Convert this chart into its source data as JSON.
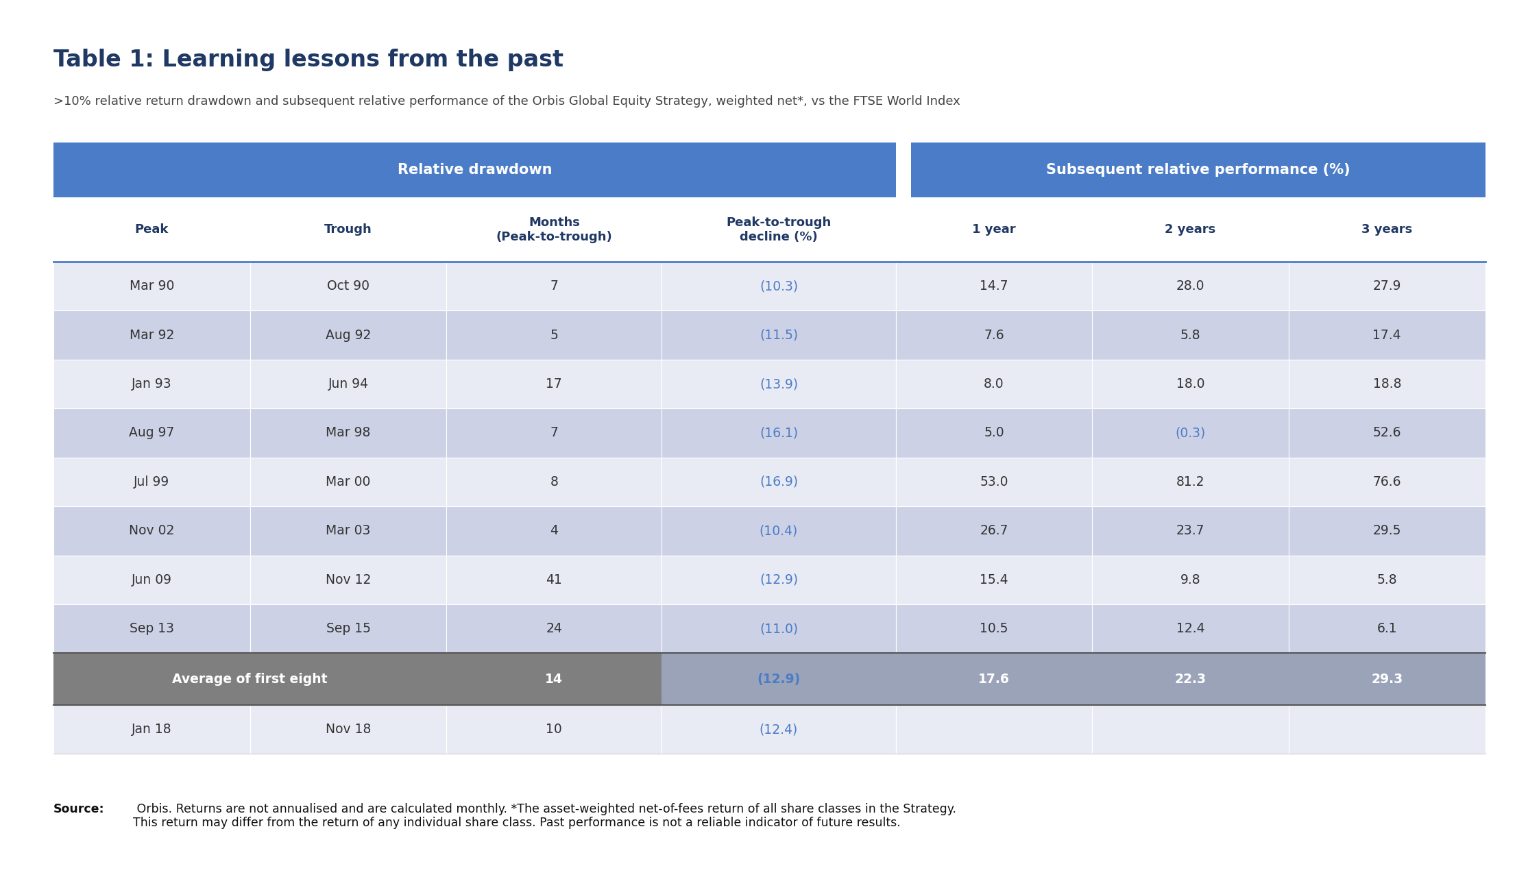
{
  "title": "Table 1: Learning lessons from the past",
  "subtitle": ">10% relative return drawdown and subsequent relative performance of the Orbis Global Equity Strategy, weighted net*, vs the FTSE World Index",
  "header1_text": "Relative drawdown",
  "header2_text": "Subsequent relative performance (%)",
  "col_headers": [
    "Peak",
    "Trough",
    "Months\n(Peak-to-trough)",
    "Peak-to-trough\ndecline (%)",
    "1 year",
    "2 years",
    "3 years"
  ],
  "rows": [
    [
      "Mar 90",
      "Oct 90",
      "7",
      "(10.3)",
      "14.7",
      "28.0",
      "27.9"
    ],
    [
      "Mar 92",
      "Aug 92",
      "5",
      "(11.5)",
      "7.6",
      "5.8",
      "17.4"
    ],
    [
      "Jan 93",
      "Jun 94",
      "17",
      "(13.9)",
      "8.0",
      "18.0",
      "18.8"
    ],
    [
      "Aug 97",
      "Mar 98",
      "7",
      "(16.1)",
      "5.0",
      "(0.3)",
      "52.6"
    ],
    [
      "Jul 99",
      "Mar 00",
      "8",
      "(16.9)",
      "53.0",
      "81.2",
      "76.6"
    ],
    [
      "Nov 02",
      "Mar 03",
      "4",
      "(10.4)",
      "26.7",
      "23.7",
      "29.5"
    ],
    [
      "Jun 09",
      "Nov 12",
      "41",
      "(12.9)",
      "15.4",
      "9.8",
      "5.8"
    ],
    [
      "Sep 13",
      "Sep 15",
      "24",
      "(11.0)",
      "10.5",
      "12.4",
      "6.1"
    ]
  ],
  "avg_row": [
    "Average of first eight",
    "",
    "14",
    "(12.9)",
    "17.6",
    "22.3",
    "29.3"
  ],
  "last_row": [
    "Jan 18",
    "Nov 18",
    "10",
    "(12.4)",
    "",
    "",
    ""
  ],
  "header_bg_color": "#4A7CC7",
  "header_text_color": "#FFFFFF",
  "col_header_text_color": "#1F3864",
  "row_bg_odd": "#E9EBF4",
  "row_bg_even": "#CDD1E5",
  "avg_row_bg_left": "#7F7F7F",
  "avg_row_bg_right": "#9BA3B8",
  "avg_row_text_color": "#FFFFFF",
  "last_row_bg": "#E9EBF4",
  "decline_color": "#4A7CC7",
  "normal_text_color": "#333333",
  "title_color": "#1F3864",
  "subtitle_color": "#444444",
  "white": "#FFFFFF",
  "background_color": "#FFFFFF",
  "source_bold": "Source:",
  "source_rest": " Orbis. Returns are not annualised and are calculated monthly. *The asset-weighted net-of-fees return of all share classes in the Strategy.\nThis return may differ from the return of any individual share class. Past performance is not a reliable indicator of future results."
}
